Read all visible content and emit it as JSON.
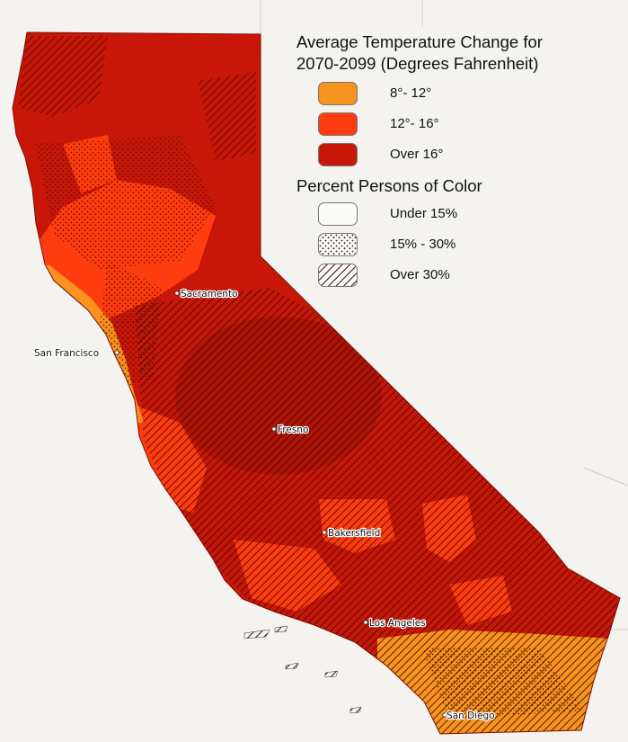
{
  "legend": {
    "temperature": {
      "title_line1": "Average Temperature Change for",
      "title_line2": "2070-2099 (Degrees Fahrenheit)",
      "items": [
        {
          "label": "8°- 12°",
          "color": "#f7931e"
        },
        {
          "label": "12°- 16°",
          "color": "#ff3c0f"
        },
        {
          "label": "Over 16°",
          "color": "#c81708"
        }
      ]
    },
    "people_of_color": {
      "title": "Percent Persons of Color",
      "items": [
        {
          "label": "Under 15%",
          "pattern": "none"
        },
        {
          "label": "15% - 30%",
          "pattern": "stipple"
        },
        {
          "label": "Over 30%",
          "pattern": "diagonal-hatch"
        }
      ]
    }
  },
  "cities": {
    "sacramento": "Sacramento",
    "san_francisco": "San Francisco",
    "fresno": "Fresno",
    "bakersfield": "Bakersfield",
    "los_angeles": "Los Angeles",
    "san_diego": "San Diego"
  },
  "colors": {
    "background": "#f4f3ef",
    "over_16": "#c81708",
    "band_12_16": "#ff3c0f",
    "band_8_12": "#f7931e",
    "hatch": "#3a0a04"
  }
}
